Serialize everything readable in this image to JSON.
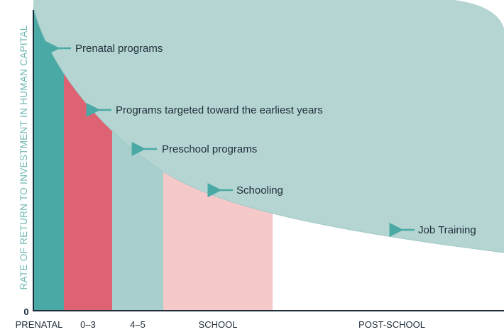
{
  "y_axis_label": "RATE OF RETURN TO INVESTMENT IN HUMAN CAPITAL",
  "origin_label": "0",
  "stages": [
    "PRENATAL",
    "0–3",
    "4–5",
    "SCHOOL",
    "POST-SCHOOL"
  ],
  "annotations": [
    "Prenatal programs",
    "Programs targeted toward the earliest years",
    "Preschool programs",
    "Schooling",
    "Job Training"
  ]
}
